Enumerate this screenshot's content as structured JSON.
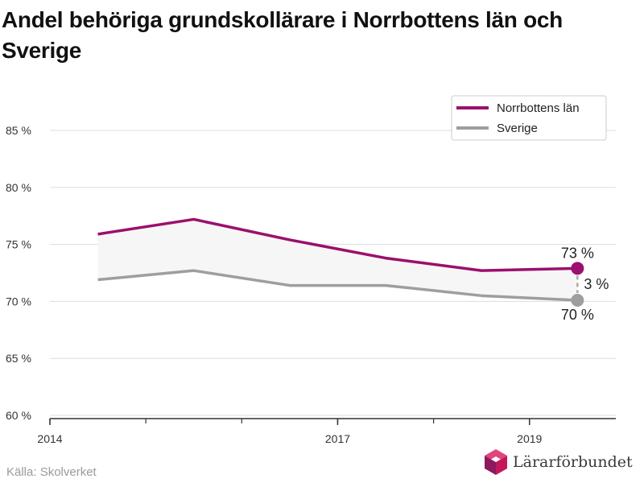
{
  "chart_data": {
    "type": "line",
    "title": "Andel behöriga grundskollärare i Norrbottens län och Sverige",
    "xlabel": "",
    "ylabel": "",
    "xlim": [
      2014,
      2019.9
    ],
    "ylim": [
      60,
      85
    ],
    "x_ticks": [
      2014,
      2017,
      2019
    ],
    "y_ticks": [
      60,
      65,
      70,
      75,
      80,
      85
    ],
    "y_tick_labels": [
      "60 %",
      "65 %",
      "70 %",
      "75 %",
      "80 %",
      "85 %"
    ],
    "grid": true,
    "legend_position": "top-right",
    "x": [
      2014.5,
      2015.5,
      2016.5,
      2017.5,
      2018.5,
      2019.5
    ],
    "series": [
      {
        "name": "Norrbottens län",
        "color": "#9b0f6e",
        "values": [
          75.9,
          77.2,
          75.4,
          73.8,
          72.7,
          72.9
        ]
      },
      {
        "name": "Sverige",
        "color": "#9e9e9e",
        "values": [
          71.9,
          72.7,
          71.4,
          71.4,
          70.5,
          70.1
        ]
      }
    ],
    "annotations": {
      "top_label": "73 %",
      "bottom_label": "70 %",
      "diff_label": "3 %"
    }
  },
  "footer": {
    "source": "Källa: Skolverket",
    "logo_text": "Lärarförbundet",
    "logo_icon": "cube-logo-icon"
  }
}
